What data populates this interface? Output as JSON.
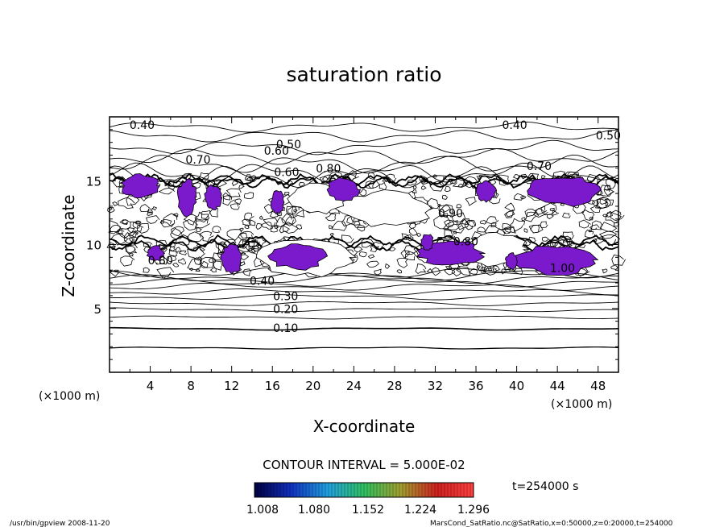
{
  "chart_data": {
    "type": "contour",
    "title": "saturation ratio",
    "xlabel": "X-coordinate",
    "ylabel": "Z-coordinate",
    "x_unit_label": "(×1000 m)",
    "y_unit_label": "(×1000 m)",
    "xlim": [
      0,
      50
    ],
    "ylim": [
      0,
      20
    ],
    "x_ticks": [
      4,
      8,
      12,
      16,
      20,
      24,
      28,
      32,
      36,
      40,
      44,
      48
    ],
    "y_ticks": [
      5,
      10,
      15
    ],
    "contour_interval_text": "CONTOUR INTERVAL = 5.000E-02",
    "time_text": "t=254000 s",
    "colorbar": {
      "ticks": [
        "1.008",
        "1.080",
        "1.152",
        "1.224",
        "1.296"
      ],
      "colors": [
        "#000040",
        "#1030c0",
        "#20a0e0",
        "#30c060",
        "#a0a030",
        "#d02020",
        "#ff4040"
      ]
    },
    "contour_labels": [
      {
        "text": "0.40",
        "x": 3.2,
        "y": 19.3
      },
      {
        "text": "0.40",
        "x": 39.8,
        "y": 19.3
      },
      {
        "text": "0.50",
        "x": 49.0,
        "y": 18.5
      },
      {
        "text": "0.50",
        "x": 17.6,
        "y": 17.8
      },
      {
        "text": "0.60",
        "x": 16.4,
        "y": 17.3
      },
      {
        "text": "0.70",
        "x": 8.7,
        "y": 16.6
      },
      {
        "text": "0.70",
        "x": 42.2,
        "y": 16.1
      },
      {
        "text": "0.80",
        "x": 21.5,
        "y": 15.9
      },
      {
        "text": "0.60",
        "x": 17.4,
        "y": 15.6
      },
      {
        "text": "0.90",
        "x": 33.5,
        "y": 12.4
      },
      {
        "text": "0.80",
        "x": 35.0,
        "y": 10.2
      },
      {
        "text": "0.80",
        "x": 5.0,
        "y": 8.7
      },
      {
        "text": "1.00",
        "x": 44.5,
        "y": 8.1
      },
      {
        "text": "0.40",
        "x": 15.0,
        "y": 7.1
      },
      {
        "text": "0.30",
        "x": 17.3,
        "y": 5.9
      },
      {
        "text": "0.20",
        "x": 17.3,
        "y": 4.9
      },
      {
        "text": "0.10",
        "x": 17.3,
        "y": 3.4
      }
    ],
    "supersaturated_regions_color": "#7a1acc",
    "grid": false
  },
  "footer": {
    "left": "/usr/bin/gpview   2008-11-20",
    "right": "MarsCond_SatRatio.nc@SatRatio,x=0:50000,z=0:20000,t=254000"
  }
}
